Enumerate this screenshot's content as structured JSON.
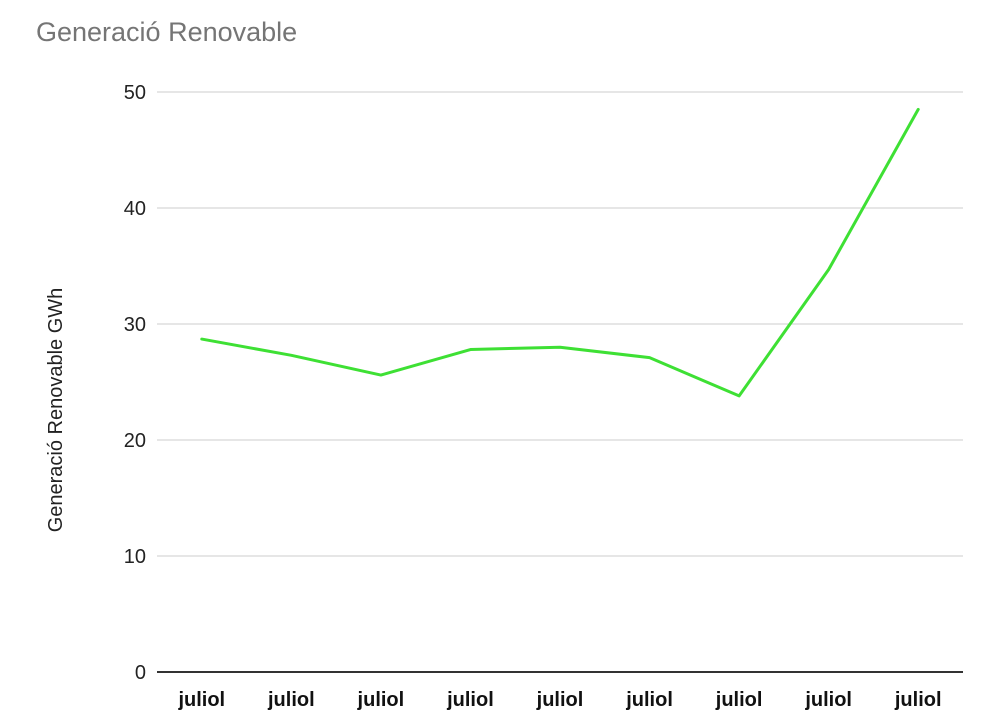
{
  "chart_data": {
    "type": "line",
    "title": "Generació Renovable",
    "xlabel": "",
    "ylabel": "Generació Renovable GWh",
    "categories": [
      "juliol",
      "juliol",
      "juliol",
      "juliol",
      "juliol",
      "juliol",
      "juliol",
      "juliol",
      "juliol"
    ],
    "series": [
      {
        "values": [
          28.7,
          27.3,
          25.6,
          27.8,
          28.0,
          27.1,
          23.8,
          34.7,
          48.5
        ],
        "color": "#3ee034"
      }
    ],
    "ylim": [
      0,
      50
    ],
    "yticks": [
      "0",
      "10",
      "20",
      "30",
      "40",
      "50"
    ],
    "grid": true,
    "legend": "none"
  }
}
